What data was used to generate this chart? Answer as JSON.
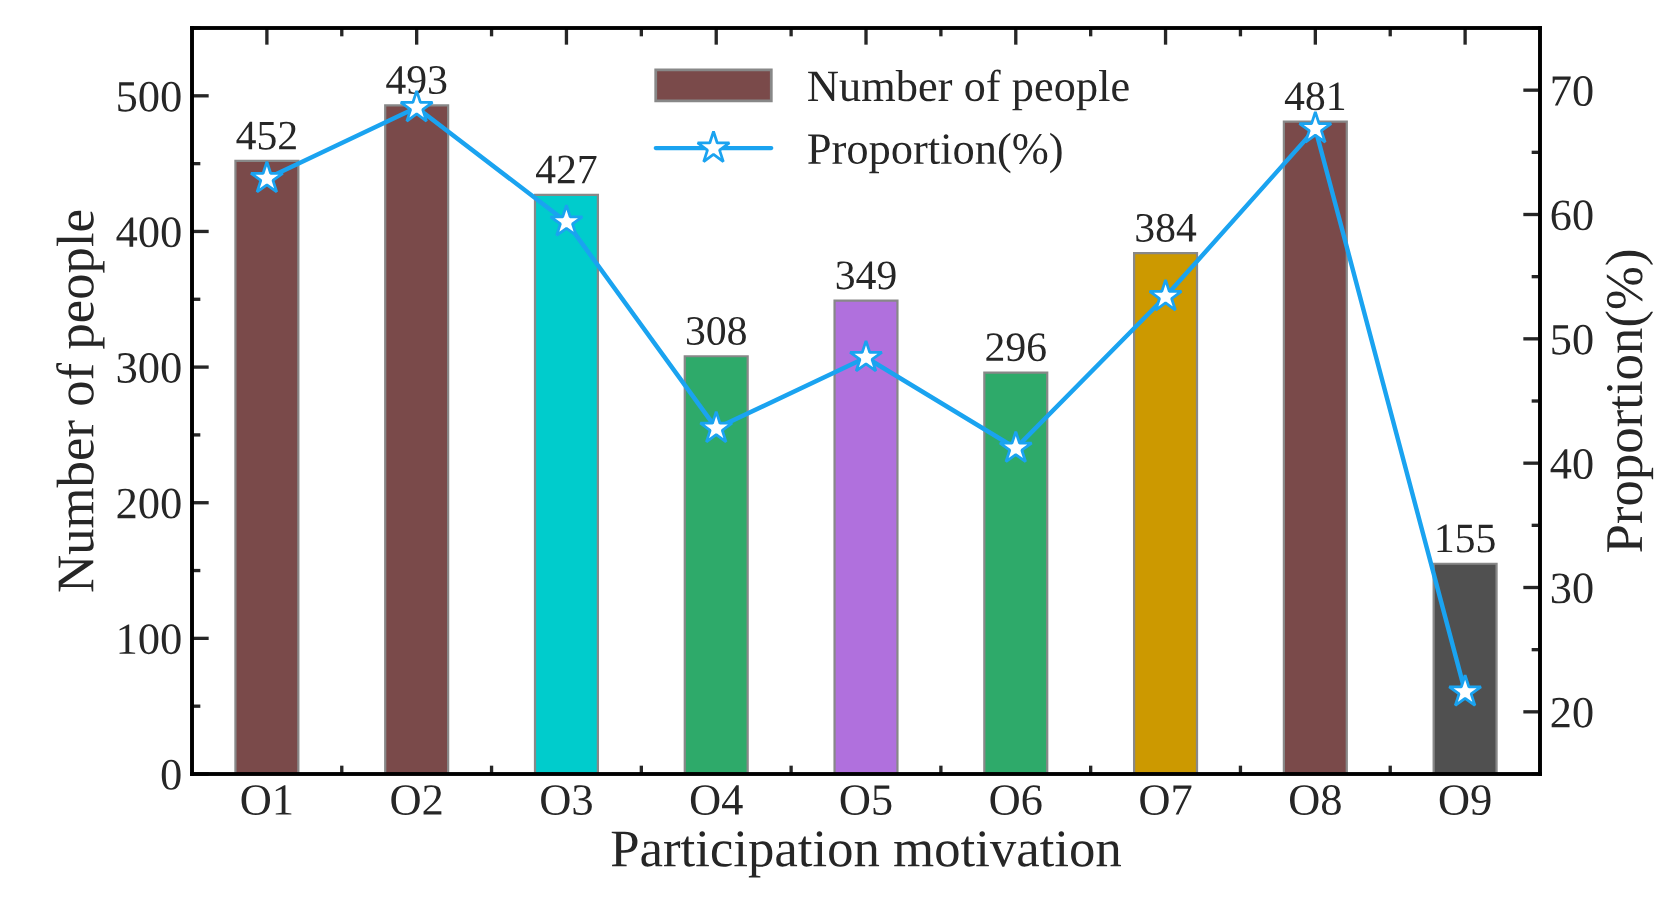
{
  "chart_data": {
    "type": "bar",
    "xlabel": "Participation motivation",
    "ylabel": "Number of people",
    "y2label": "Proportion(%)",
    "categories": [
      "O1",
      "O2",
      "O3",
      "O4",
      "O5",
      "O6",
      "O7",
      "O8",
      "O9"
    ],
    "series": [
      {
        "name": "Number of people",
        "colors": [
          "#7a4a4a",
          "#7a4a4a",
          "#00cccc",
          "#2eaa6a",
          "#b070dd",
          "#2eaa6a",
          "#cc9900",
          "#7a4a4a",
          "#505050"
        ],
        "color": "#7a4a4a",
        "values": [
          452,
          493,
          427,
          308,
          349,
          296,
          384,
          481,
          155
        ],
        "value_labels": [
          "452",
          "493",
          "427",
          "308",
          "349",
          "296",
          "384",
          "481",
          "155"
        ]
      },
      {
        "name": "Proportion(%)",
        "type": "line",
        "axis": "y2",
        "color": "#1aa3f0",
        "marker": "star",
        "line_style": "solid",
        "values": [
          62.9,
          68.6,
          59.4,
          42.8,
          48.5,
          41.2,
          53.4,
          66.9,
          21.6
        ]
      }
    ],
    "ylim": [
      0,
      550
    ],
    "yticks": [
      0,
      100,
      200,
      300,
      400,
      500
    ],
    "y2lim": [
      15,
      75
    ],
    "y2ticks": [
      20,
      30,
      40,
      50,
      60,
      70
    ],
    "grid": false,
    "legend": "top"
  }
}
